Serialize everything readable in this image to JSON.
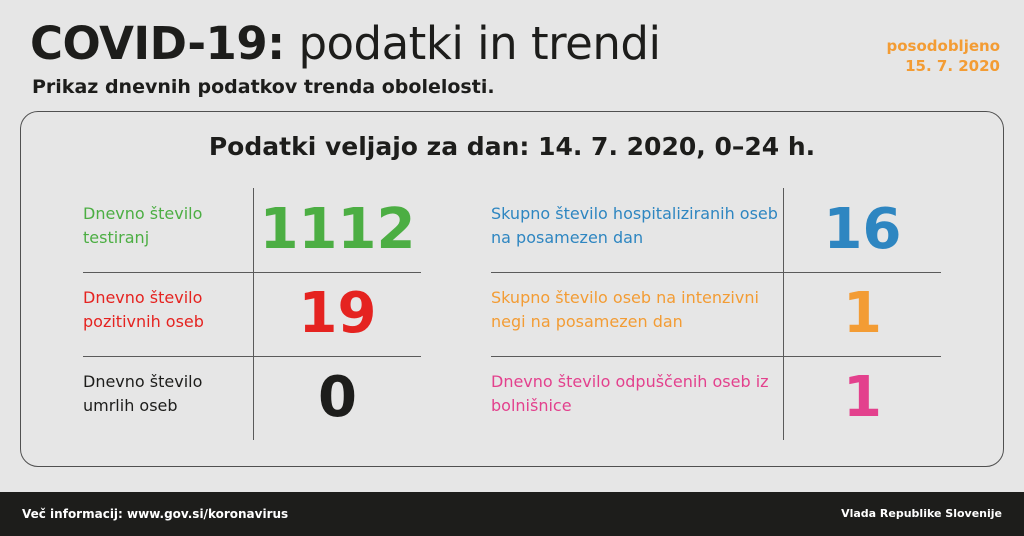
{
  "header": {
    "title_bold": "COVID-19:",
    "title_light": "podatki in trendi",
    "subtitle": "Prikaz dnevnih podatkov trenda obolelosti.",
    "updated_label": "posodobljeno",
    "updated_date": "15. 7. 2020"
  },
  "card": {
    "title": "Podatki veljajo za dan: 14. 7. 2020, 0–24 h.",
    "left": [
      {
        "label": "Dnevno število testiranj",
        "value": "1112",
        "color": "#4cae43"
      },
      {
        "label": "Dnevno število pozitivnih oseb",
        "value": "19",
        "color": "#e52320"
      },
      {
        "label": "Dnevno število umrlih oseb",
        "value": "0",
        "color": "#1d1d1b"
      }
    ],
    "right": [
      {
        "label": "Skupno število hospitaliziranih oseb na posamezen dan",
        "value": "16",
        "color": "#2e86c1"
      },
      {
        "label": "Skupno število oseb na intenzivni negi na posamezen dan",
        "value": "1",
        "color": "#f39c34"
      },
      {
        "label": "Dnevno število odpuščenih oseb iz bolnišnice",
        "value": "1",
        "color": "#e3418d"
      }
    ]
  },
  "footer": {
    "info": "Več informacij: www.gov.si/koronavirus",
    "org": "Vlada Republike Slovenije"
  }
}
